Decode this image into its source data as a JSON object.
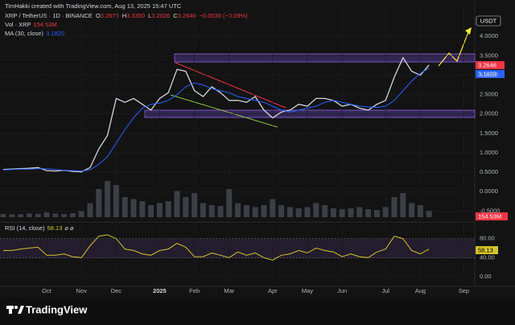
{
  "header": {
    "credit": "TimHakki created with TradingView.com, Aug 13, 2025 15:47 UTC",
    "symbol": "XRP / TetherUS · 1D · BINANCE",
    "ohlc": [
      {
        "label": "O",
        "value": "3.2675"
      },
      {
        "label": "H",
        "value": "3.3350"
      },
      {
        "label": "L",
        "value": "3.2026"
      },
      {
        "label": "C",
        "value": "3.2646"
      }
    ],
    "change": "−0.0030 (−0.09%)",
    "vol_label": "Vol · XRP",
    "vol_value": "154.53M",
    "ma_label": "MA (30, close)",
    "ma_value": "3.1820",
    "rsi_label": "RSI (14, close)",
    "rsi_icons": "⌀ ⌀",
    "currency": "USDT",
    "price_tag": "3.2646",
    "ma_tag": "3.1820",
    "vol_tag": "154.53M",
    "logo": "TradingView"
  },
  "chart_data": [
    {
      "type": "line",
      "categories": [
        null,
        null,
        null,
        null,
        null,
        "Oct",
        null,
        null,
        null,
        "Nov",
        null,
        null,
        null,
        "Dec",
        null,
        null,
        null,
        null,
        "2025",
        null,
        null,
        null,
        "Feb",
        null,
        null,
        null,
        "Mar",
        null,
        null,
        null,
        null,
        "Apr",
        null,
        null,
        null,
        "May",
        null,
        null,
        null,
        "Jun",
        null,
        null,
        null,
        null,
        "Jul",
        null,
        null,
        null,
        "Aug",
        null,
        null,
        null,
        null,
        "Sep"
      ],
      "series": [
        {
          "name": "XRP / TetherUS",
          "color": "#d1d4dc",
          "values": [
            0.57,
            0.58,
            0.59,
            0.6,
            0.62,
            0.54,
            0.53,
            0.55,
            0.52,
            0.51,
            0.62,
            1.1,
            1.45,
            2.4,
            2.3,
            2.4,
            2.25,
            2.1,
            2.4,
            2.55,
            3.15,
            3.1,
            2.6,
            2.45,
            2.7,
            2.55,
            2.35,
            2.35,
            2.3,
            2.45,
            2.1,
            1.9,
            2.05,
            2.1,
            2.25,
            2.2,
            2.4,
            2.4,
            2.35,
            2.2,
            2.25,
            2.15,
            2.1,
            2.25,
            2.35,
            2.95,
            3.45,
            3.1,
            3.0,
            3.2646,
            null,
            null,
            null,
            null
          ]
        },
        {
          "name": "MA (30, close)",
          "color": "#2962ff",
          "values": [
            0.56,
            0.57,
            0.58,
            0.58,
            0.59,
            0.59,
            0.57,
            0.55,
            0.54,
            0.53,
            0.56,
            0.7,
            0.9,
            1.25,
            1.6,
            1.9,
            2.15,
            2.25,
            2.28,
            2.35,
            2.5,
            2.7,
            2.8,
            2.75,
            2.65,
            2.6,
            2.55,
            2.45,
            2.4,
            2.35,
            2.3,
            2.2,
            2.1,
            2.05,
            2.1,
            2.15,
            2.2,
            2.3,
            2.35,
            2.3,
            2.25,
            2.2,
            2.18,
            2.17,
            2.2,
            2.35,
            2.6,
            2.85,
            3.05,
            3.182,
            null,
            null,
            null,
            null
          ]
        }
      ],
      "ylim": [
        -0.66,
        4.73
      ],
      "yticks": [
        {
          "value": 4,
          "label": "4.0000"
        },
        {
          "value": 3.5,
          "label": "3.5000"
        },
        {
          "value": 3,
          "label": "3.0000"
        },
        {
          "value": 2.5,
          "label": "2.5000"
        },
        {
          "value": 2,
          "label": "2.0000"
        },
        {
          "value": 1.5,
          "label": "1.5000"
        },
        {
          "value": 1,
          "label": "1.0000"
        },
        {
          "value": 0.5,
          "label": "0.5000"
        },
        {
          "value": 0,
          "label": "0.0000"
        },
        {
          "value": -0.5,
          "label": "-0.5000"
        }
      ]
    },
    {
      "type": "bar",
      "color": "#3b3f47",
      "values": [
        80,
        70,
        75,
        90,
        85,
        120,
        90,
        80,
        100,
        150,
        350,
        700,
        900,
        800,
        500,
        450,
        400,
        300,
        350,
        400,
        650,
        500,
        600,
        350,
        300,
        280,
        700,
        350,
        300,
        250,
        300,
        450,
        300,
        250,
        220,
        250,
        350,
        300,
        220,
        200,
        220,
        250,
        200,
        180,
        250,
        500,
        600,
        350,
        300,
        154.53,
        null,
        null,
        null,
        null
      ],
      "ylim": [
        0,
        1000
      ]
    },
    {
      "type": "line",
      "series": [
        {
          "name": "RSI (14, close)",
          "color": "#d4c22a",
          "values": [
            55,
            55,
            58,
            60,
            62,
            45,
            45,
            48,
            42,
            40,
            65,
            85,
            88,
            80,
            58,
            55,
            48,
            45,
            55,
            58,
            70,
            62,
            42,
            42,
            50,
            45,
            40,
            52,
            45,
            50,
            40,
            35,
            45,
            48,
            55,
            50,
            60,
            55,
            52,
            42,
            48,
            42,
            40,
            52,
            58,
            85,
            80,
            55,
            48,
            58.13,
            null,
            null,
            null,
            null
          ]
        }
      ],
      "ylim": [
        -13.5,
        108
      ],
      "yticks": [
        {
          "value": 80,
          "label": "80.00"
        },
        {
          "value": 40,
          "label": "40.00"
        },
        {
          "value": 0,
          "label": "0.00"
        }
      ]
    }
  ]
}
